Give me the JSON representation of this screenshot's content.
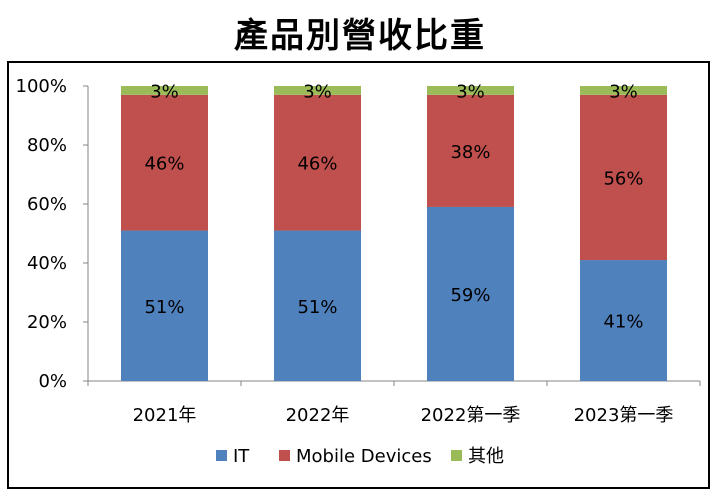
{
  "chart_data": {
    "type": "bar",
    "stacked": true,
    "percent": true,
    "title": "產品別營收比重",
    "categories": [
      "2021年",
      "2022年",
      "2022第一季",
      "2023第一季"
    ],
    "ylim": [
      0,
      100
    ],
    "yticks": [
      "0%",
      "20%",
      "40%",
      "60%",
      "80%",
      "100%"
    ],
    "series": [
      {
        "name": "IT",
        "color": "#4F81BD",
        "values": [
          51,
          51,
          59,
          41
        ],
        "labels": [
          "51%",
          "51%",
          "59%",
          "41%"
        ]
      },
      {
        "name": "Mobile Devices",
        "color": "#C0504D",
        "values": [
          46,
          46,
          38,
          56
        ],
        "labels": [
          "46%",
          "46%",
          "38%",
          "56%"
        ]
      },
      {
        "name": "其他",
        "color": "#9BBB59",
        "values": [
          3,
          3,
          3,
          3
        ],
        "labels": [
          "3%",
          "3%",
          "3%",
          "3%"
        ]
      }
    ],
    "legend": "bottom",
    "grid": false
  }
}
